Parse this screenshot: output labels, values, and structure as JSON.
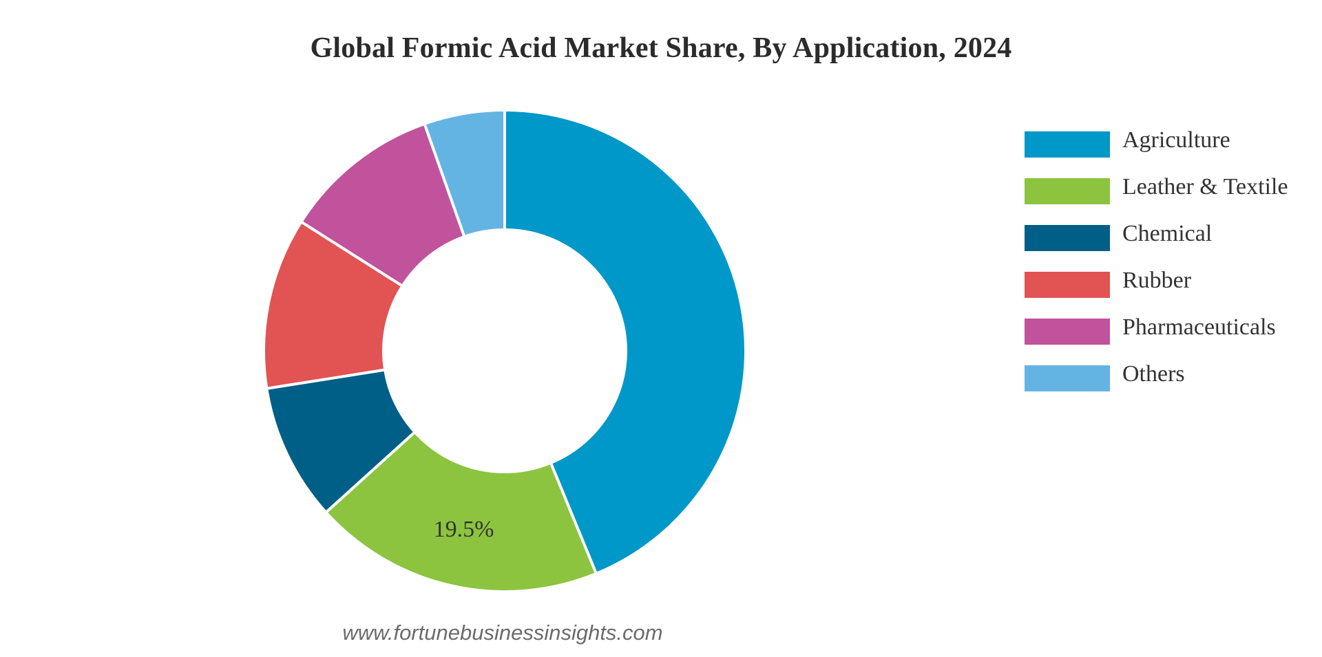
{
  "chart_data": {
    "type": "pie",
    "title": "Global Formic Acid Market Share, By Application, 2024",
    "categories": [
      "Agriculture",
      "Leather & Textile",
      "Chemical",
      "Rubber",
      "Pharmaceuticals",
      "Others"
    ],
    "values": [
      43.8,
      19.5,
      9.2,
      11.5,
      10.6,
      5.4
    ],
    "colors": [
      "#0098c8",
      "#8cc43f",
      "#005f87",
      "#e25353",
      "#c0539c",
      "#64b4e3"
    ],
    "data_labels": [
      "",
      "19.5%",
      "",
      "",
      "",
      ""
    ],
    "donut": true,
    "legend_position": "right"
  },
  "source": "www.fortunebusinessinsights.com"
}
